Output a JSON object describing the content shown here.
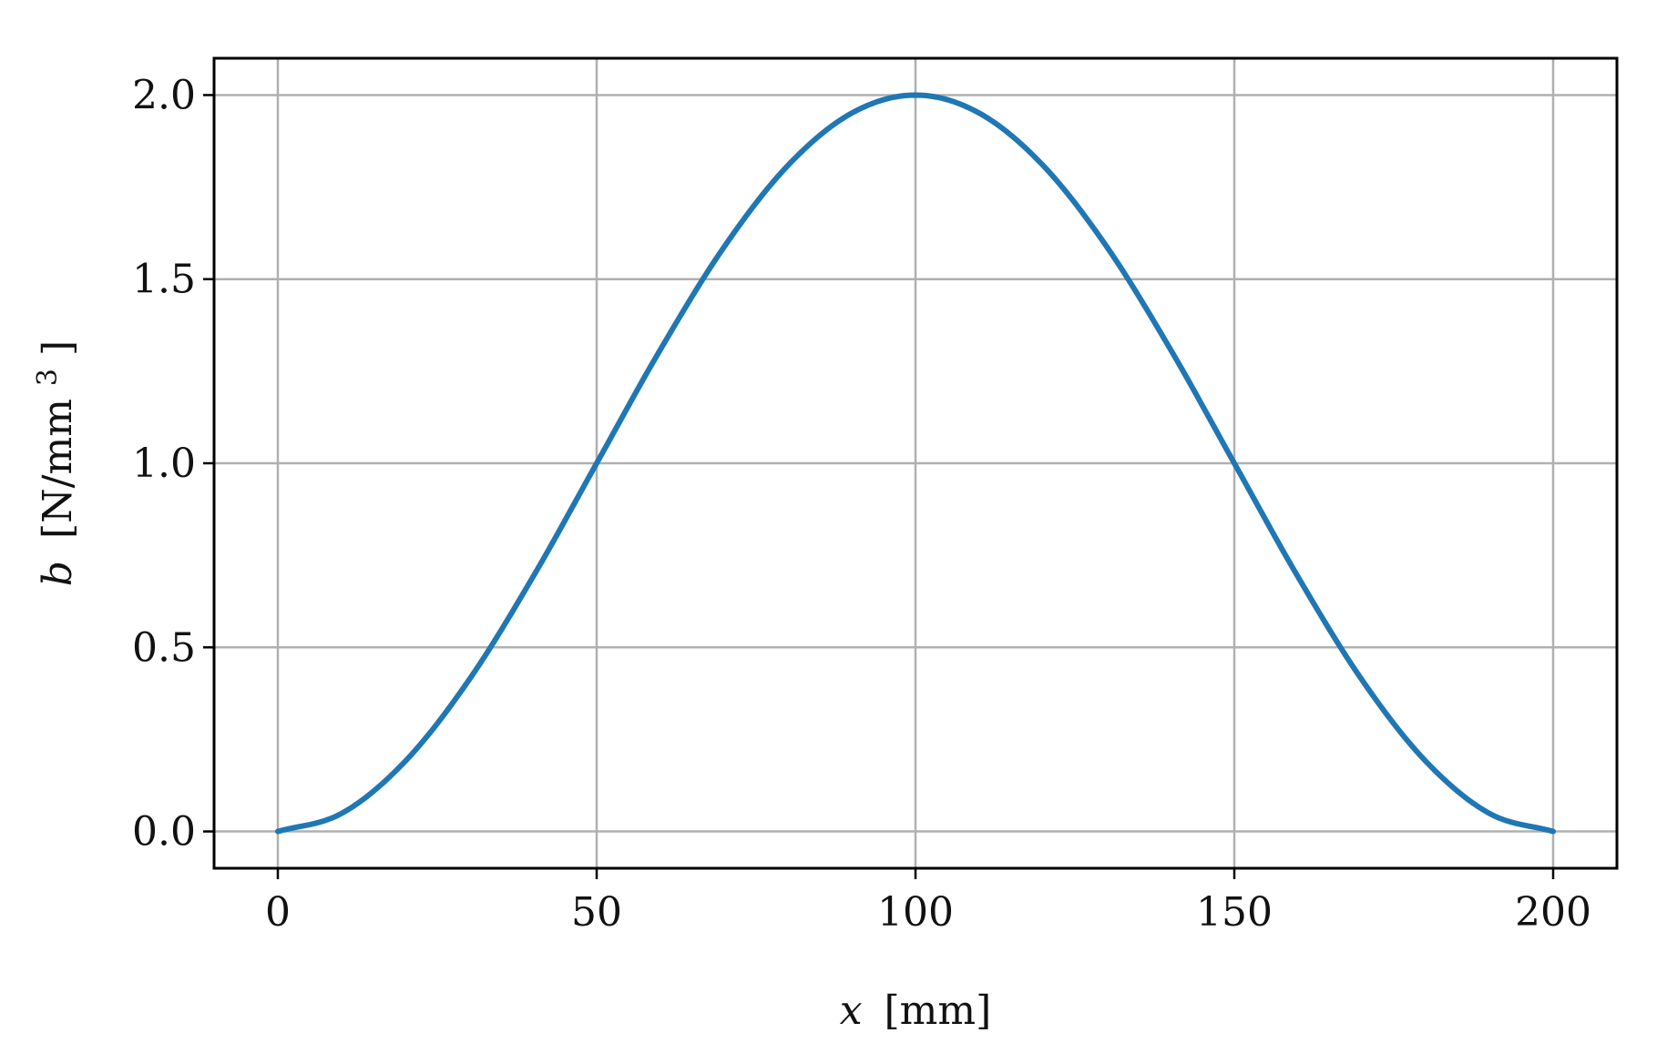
{
  "chart_data": {
    "type": "line",
    "title": "",
    "xlabel": {
      "var": "x",
      "unit": "[mm]"
    },
    "ylabel": {
      "var": "b",
      "unit": "[N/mm",
      "unit_sup": "3",
      "unit_close": "]"
    },
    "xlim": [
      -10,
      210
    ],
    "ylim": [
      -0.1,
      2.1
    ],
    "xticks": [
      0,
      50,
      100,
      150,
      200
    ],
    "xtick_labels": [
      "0",
      "50",
      "100",
      "150",
      "200"
    ],
    "yticks": [
      0.0,
      0.5,
      1.0,
      1.5,
      2.0
    ],
    "ytick_labels": [
      "0.0",
      "0.5",
      "1.0",
      "1.5",
      "2.0"
    ],
    "grid": true,
    "series": [
      {
        "color": "#1f77b4",
        "x": [
          0,
          10,
          20,
          30,
          40,
          50,
          60,
          70,
          80,
          90,
          100,
          110,
          120,
          130,
          140,
          150,
          160,
          170,
          180,
          190,
          200
        ],
        "y": [
          0.0,
          0.0489,
          0.191,
          0.412,
          0.691,
          1.0,
          1.309,
          1.588,
          1.809,
          1.951,
          2.0,
          1.951,
          1.809,
          1.588,
          1.309,
          1.0,
          0.691,
          0.412,
          0.191,
          0.0489,
          0.0
        ]
      }
    ]
  }
}
